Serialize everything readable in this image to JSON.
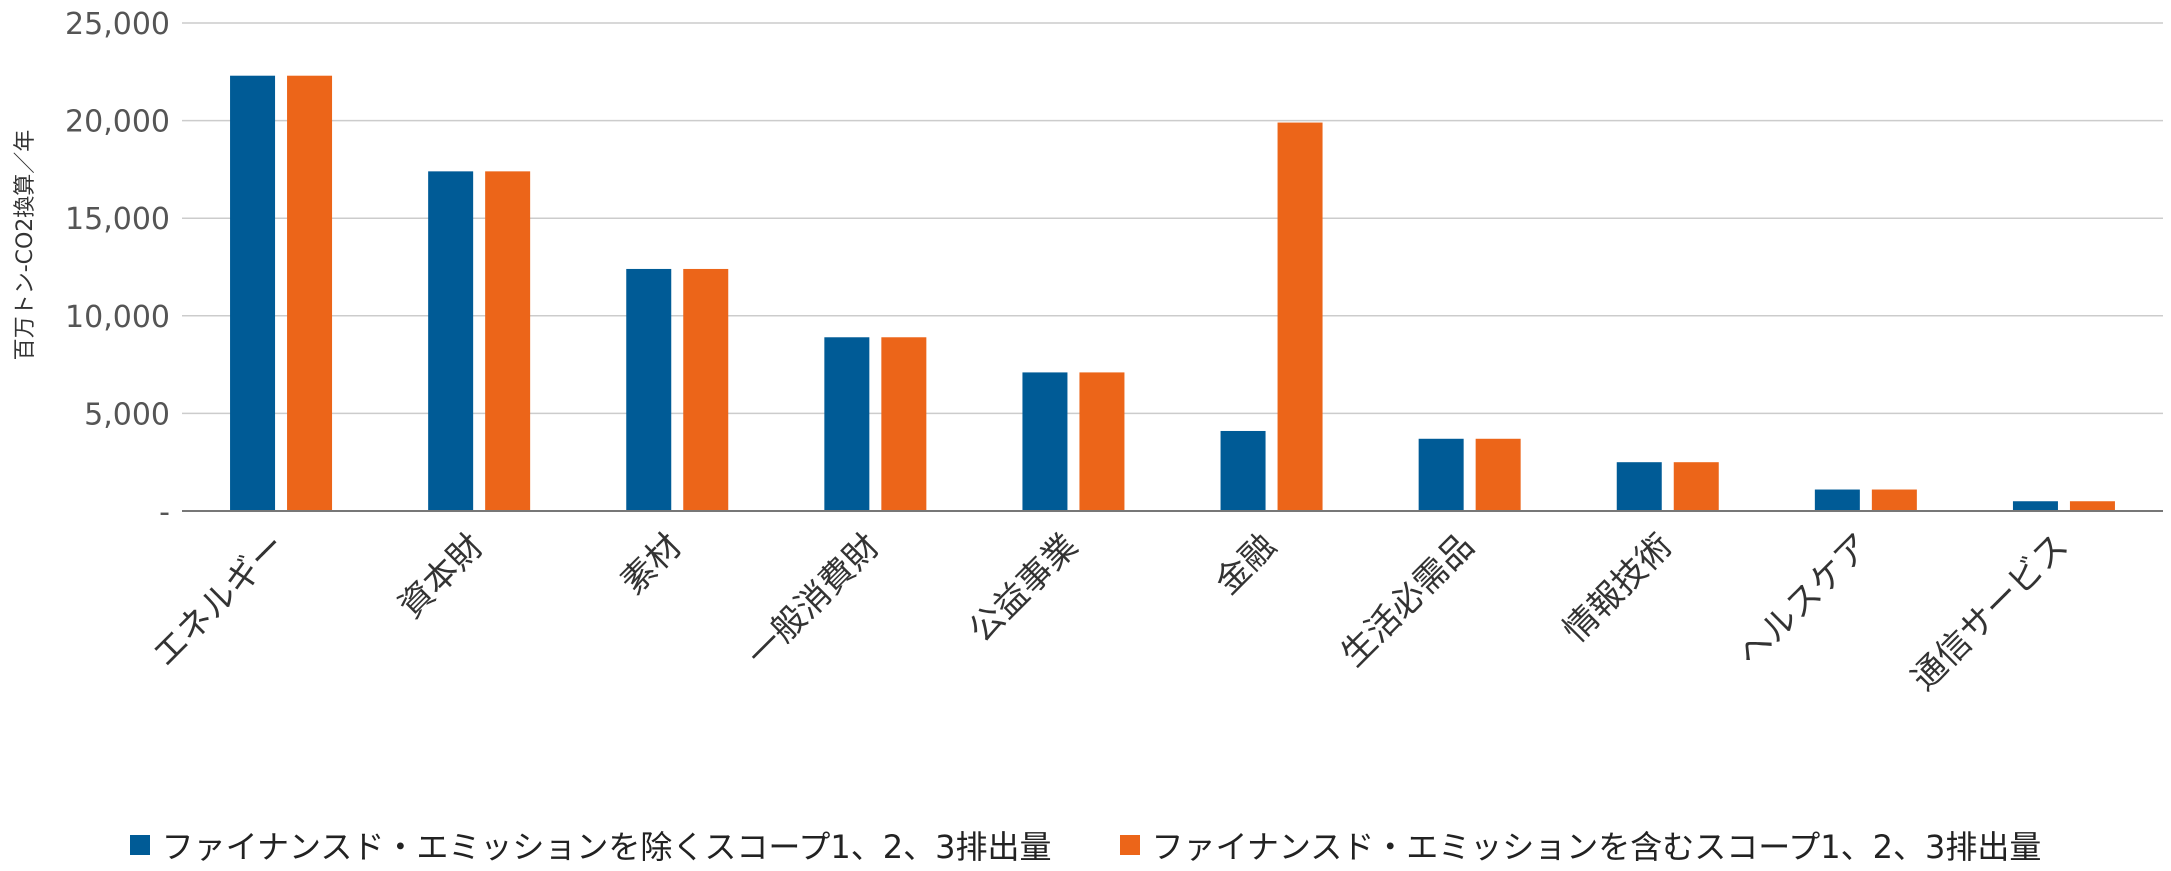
{
  "chart_data": {
    "type": "bar",
    "title": "",
    "xlabel": "",
    "ylabel": "百万トン-CO2換算／年",
    "ylim": [
      0,
      25000
    ],
    "yticks": [
      0,
      5000,
      10000,
      15000,
      20000,
      25000
    ],
    "ytick_labels": [
      "-",
      "5,000",
      "10,000",
      "15,000",
      "20,000",
      "25,000"
    ],
    "grid": true,
    "categories": [
      "エネルギー",
      "資本財",
      "素材",
      "一般消費財",
      "公益事業",
      "金融",
      "生活必需品",
      "情報技術",
      "ヘルスケア",
      "通信サービス"
    ],
    "series": [
      {
        "name": "ファイナンスド・エミッションを除くスコープ1、2、3排出量",
        "color": "#005b96",
        "values": [
          22300,
          17400,
          12400,
          8900,
          7100,
          4100,
          3700,
          2500,
          1100,
          500
        ]
      },
      {
        "name": "ファイナンスド・エミッションを含むスコープ1、2、3排出量",
        "color": "#ec6519",
        "values": [
          22300,
          17400,
          12400,
          8900,
          7100,
          19900,
          3700,
          2500,
          1100,
          500
        ]
      }
    ],
    "legend_position": "bottom-center"
  }
}
